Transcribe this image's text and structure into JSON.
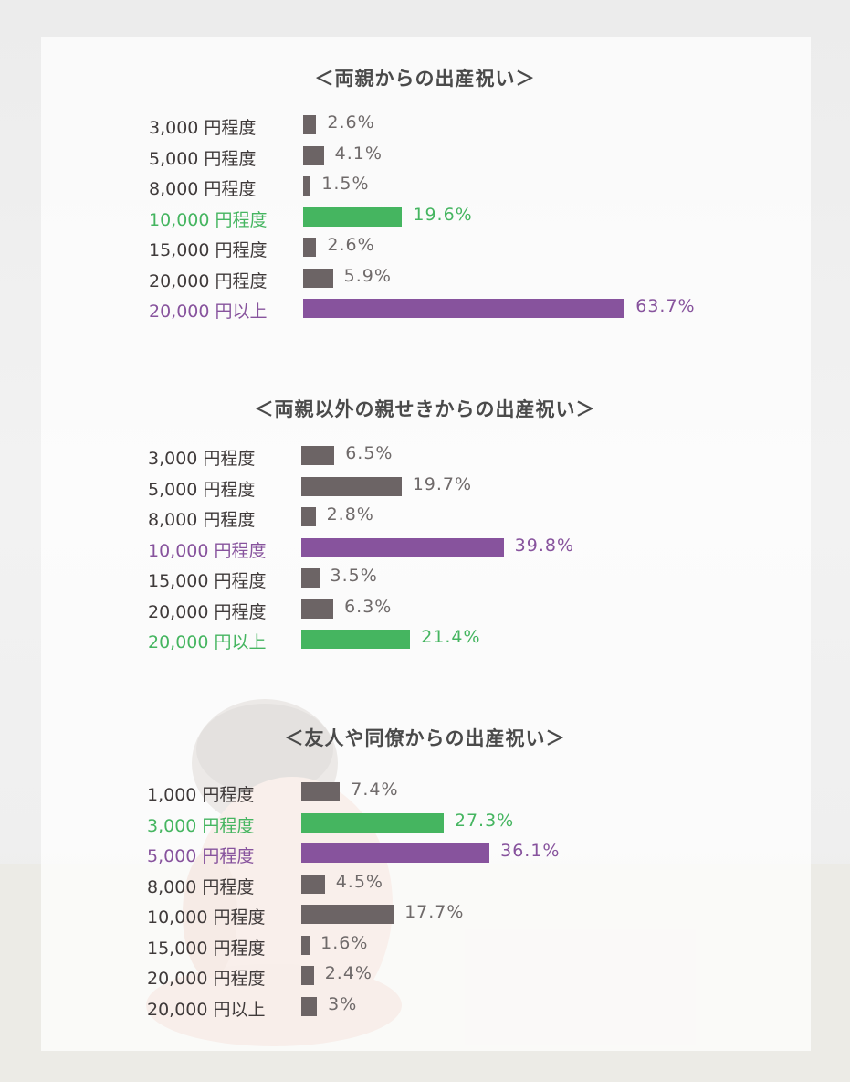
{
  "colors": {
    "neutral_bar": "#6c6465",
    "neutral_label": "#3f3a3a",
    "neutral_value": "#6f6a6a",
    "highlight_green": "#45b560",
    "highlight_purple": "#87539d"
  },
  "chart_data": [
    {
      "type": "bar",
      "orientation": "horizontal",
      "title": "＜両親からの出産祝い＞",
      "categories": [
        "3,000 円程度",
        "5,000 円程度",
        "8,000 円程度",
        "10,000 円程度",
        "15,000 円程度",
        "20,000 円程度",
        "20,000 円以上"
      ],
      "values": [
        2.6,
        4.1,
        1.5,
        19.6,
        2.6,
        5.9,
        63.7
      ],
      "value_labels": [
        "2.6%",
        "4.1%",
        "1.5%",
        "19.6%",
        "2.6%",
        "5.9%",
        "63.7%"
      ],
      "highlights": [
        "neutral",
        "neutral",
        "neutral",
        "green",
        "neutral",
        "neutral",
        "purple"
      ],
      "unit": "%"
    },
    {
      "type": "bar",
      "orientation": "horizontal",
      "title": "＜両親以外の親せきからの出産祝い＞",
      "categories": [
        "3,000 円程度",
        "5,000 円程度",
        "8,000 円程度",
        "10,000 円程度",
        "15,000 円程度",
        "20,000 円程度",
        "20,000 円以上"
      ],
      "values": [
        6.5,
        19.7,
        2.8,
        39.8,
        3.5,
        6.3,
        21.4
      ],
      "value_labels": [
        "6.5%",
        "19.7%",
        "2.8%",
        "39.8%",
        "3.5%",
        "6.3%",
        "21.4%"
      ],
      "highlights": [
        "neutral",
        "neutral",
        "neutral",
        "purple",
        "neutral",
        "neutral",
        "green"
      ],
      "unit": "%"
    },
    {
      "type": "bar",
      "orientation": "horizontal",
      "title": "＜友人や同僚からの出産祝い＞",
      "categories": [
        "1,000 円程度",
        "3,000 円程度",
        "5,000 円程度",
        "8,000 円程度",
        "10,000 円程度",
        "15,000 円程度",
        "20,000 円程度",
        "20,000 円以上"
      ],
      "values": [
        7.4,
        27.3,
        36.1,
        4.5,
        17.7,
        1.6,
        2.4,
        3
      ],
      "value_labels": [
        "7.4%",
        "27.3%",
        "36.1%",
        "4.5%",
        "17.7%",
        "1.6%",
        "2.4%",
        "3%"
      ],
      "highlights": [
        "neutral",
        "green",
        "purple",
        "neutral",
        "neutral",
        "neutral",
        "neutral",
        "neutral"
      ],
      "unit": "%"
    }
  ]
}
